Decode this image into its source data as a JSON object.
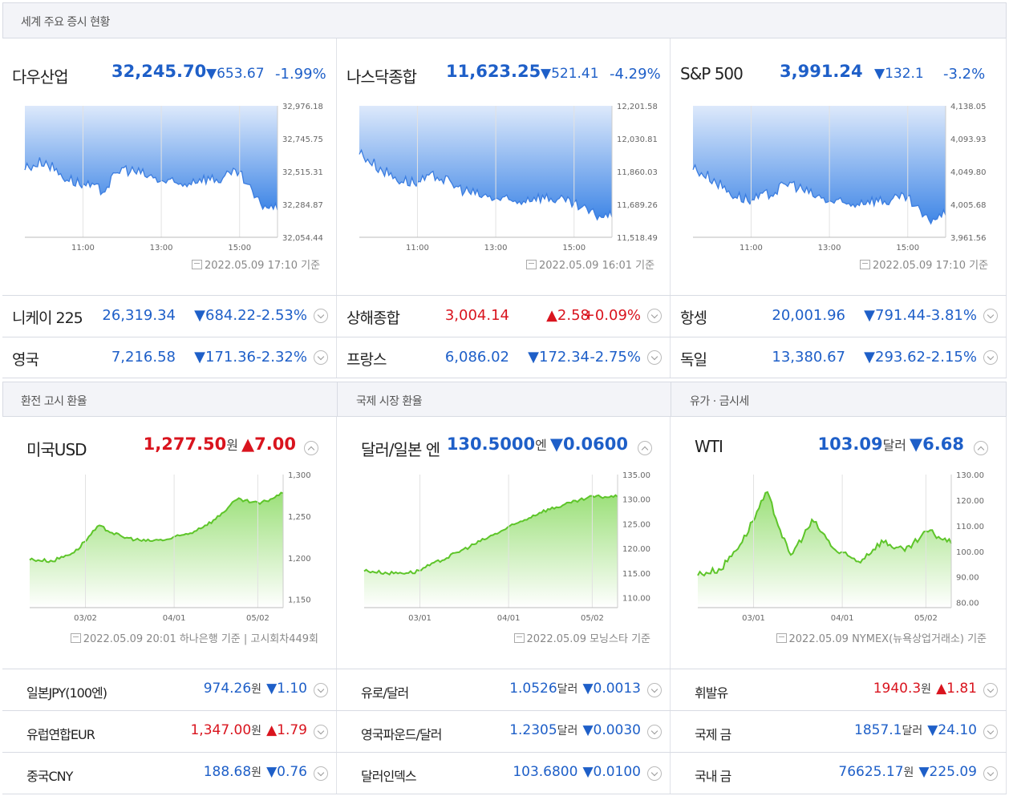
{
  "sections": {
    "world": "세계 주요 증시 현황",
    "exchange": "환전 고시 환율",
    "intl_fx": "국제 시장 환율",
    "oil_gold": "유가 · 금시세"
  },
  "indices": [
    {
      "name": "다우산업",
      "price": "32,245.70",
      "change": "▼653.67",
      "pct": "-1.99%",
      "y_ticks": [
        "32,976.18",
        "32,745.75",
        "32,515.31",
        "32,284.87",
        "32,054.44"
      ],
      "x_ticks": [
        "11:00",
        "13:00",
        "15:00"
      ],
      "stamp": "2022.05.09 17:10 기준"
    },
    {
      "name": "나스닥종합",
      "price": "11,623.25",
      "change": "▼521.41",
      "pct": "-4.29%",
      "y_ticks": [
        "12,201.58",
        "12,030.81",
        "11,860.03",
        "11,689.26",
        "11,518.49"
      ],
      "x_ticks": [
        "11:00",
        "13:00",
        "15:00"
      ],
      "stamp": "2022.05.09 16:01 기준"
    },
    {
      "name": "S&P 500",
      "price": "3,991.24",
      "change": "▼132.1",
      "pct": "-3.2%",
      "y_ticks": [
        "4,138.05",
        "4,093.93",
        "4,049.80",
        "4,005.68",
        "3,961.56"
      ],
      "x_ticks": [
        "11:00",
        "13:00",
        "15:00"
      ],
      "stamp": "2022.05.09 17:10 기준"
    }
  ],
  "index_rows": [
    [
      {
        "name": "니케이 225",
        "price": "26,319.34",
        "change": "▼684.22",
        "pct": "-2.53%",
        "dir": "down"
      },
      {
        "name": "상해종합",
        "price": "3,004.14",
        "change": "▲2.58",
        "pct": "+0.09%",
        "dir": "up"
      },
      {
        "name": "항셍",
        "price": "20,001.96",
        "change": "▼791.44",
        "pct": "-3.81%",
        "dir": "down"
      }
    ],
    [
      {
        "name": "영국",
        "price": "7,216.58",
        "change": "▼171.36",
        "pct": "-2.32%",
        "dir": "down"
      },
      {
        "name": "프랑스",
        "price": "6,086.02",
        "change": "▼172.34",
        "pct": "-2.75%",
        "dir": "down"
      },
      {
        "name": "독일",
        "price": "13,380.67",
        "change": "▼293.62",
        "pct": "-2.15%",
        "dir": "down"
      }
    ]
  ],
  "fx_main": [
    {
      "name": "미국USD",
      "price": "1,277.50",
      "unit": "원",
      "change": "▲7.00",
      "dir": "up",
      "y_ticks": [
        "1,300",
        "1,250",
        "1,200",
        "1,150"
      ],
      "x_ticks": [
        "03/02",
        "04/01",
        "05/02"
      ],
      "stamp": "2022.05.09 20:01 하나은행 기준 | 고시회차449회"
    },
    {
      "name": "달러/일본 엔",
      "price": "130.5000",
      "unit": "엔",
      "change": "▼0.0600",
      "dir": "down",
      "y_ticks": [
        "135.00",
        "130.00",
        "125.00",
        "120.00",
        "115.00",
        "110.00"
      ],
      "x_ticks": [
        "03/01",
        "04/01",
        "05/02"
      ],
      "stamp": "2022.05.09 모닝스타 기준"
    },
    {
      "name": "WTI",
      "price": "103.09",
      "unit": "달러",
      "change": "▼6.68",
      "dir": "down",
      "y_ticks": [
        "130.00",
        "120.00",
        "110.00",
        "100.00",
        "90.00",
        "80.00"
      ],
      "x_ticks": [
        "03/01",
        "04/01",
        "05/02"
      ],
      "stamp": "2022.05.09 NYMEX(뉴욕상업거래소) 기준"
    }
  ],
  "fx_rows": [
    [
      {
        "name": "일본JPY(100엔)",
        "price": "974.26",
        "unit": "원",
        "change": "▼1.10",
        "dir": "down"
      },
      {
        "name": "유로/달러",
        "price": "1.0526",
        "unit": "달러",
        "change": "▼0.0013",
        "dir": "down"
      },
      {
        "name": "휘발유",
        "price": "1940.3",
        "unit": "원",
        "change": "▲1.81",
        "dir": "up"
      }
    ],
    [
      {
        "name": "유럽연합EUR",
        "price": "1,347.00",
        "unit": "원",
        "change": "▲1.79",
        "dir": "up"
      },
      {
        "name": "영국파운드/달러",
        "price": "1.2305",
        "unit": "달러",
        "change": "▼0.0030",
        "dir": "down"
      },
      {
        "name": "국제 금",
        "price": "1857.1",
        "unit": "달러",
        "change": "▼24.10",
        "dir": "down"
      }
    ],
    [
      {
        "name": "중국CNY",
        "price": "188.68",
        "unit": "원",
        "change": "▼0.76",
        "dir": "down"
      },
      {
        "name": "달러인덱스",
        "price": "103.6800",
        "unit": "",
        "change": "▼0.0100",
        "dir": "down"
      },
      {
        "name": "국내 금",
        "price": "76625.17",
        "unit": "원",
        "change": "▼225.09",
        "dir": "down"
      }
    ]
  ],
  "colors": {
    "blue": "#1e5fc8",
    "red": "#d9141e",
    "stock_line": "#3b7de0",
    "fx_line": "#5ec52a"
  },
  "chart_data": [
    {
      "type": "area",
      "title": "다우산업",
      "x": [
        "09:30",
        "10:00",
        "10:30",
        "11:00",
        "11:30",
        "12:00",
        "12:30",
        "13:00",
        "13:30",
        "14:00",
        "14:30",
        "15:00",
        "15:30",
        "16:00"
      ],
      "values": [
        32540,
        32590,
        32480,
        32420,
        32380,
        32540,
        32500,
        32450,
        32420,
        32470,
        32460,
        32510,
        32300,
        32245.7
      ],
      "ylim": [
        32054.44,
        32976.18
      ]
    },
    {
      "type": "area",
      "title": "나스닥종합",
      "x": [
        "09:30",
        "10:00",
        "10:30",
        "11:00",
        "11:30",
        "12:00",
        "12:30",
        "13:00",
        "13:30",
        "14:00",
        "14:30",
        "15:00",
        "15:30",
        "16:00"
      ],
      "values": [
        11960,
        11880,
        11820,
        11800,
        11840,
        11780,
        11740,
        11720,
        11700,
        11730,
        11720,
        11690,
        11640,
        11623.25
      ],
      "ylim": [
        11518.49,
        12201.58
      ]
    },
    {
      "type": "area",
      "title": "S&P 500",
      "x": [
        "09:30",
        "10:00",
        "10:30",
        "11:00",
        "11:30",
        "12:00",
        "12:30",
        "13:00",
        "13:30",
        "14:00",
        "14:30",
        "15:00",
        "15:30",
        "16:00"
      ],
      "values": [
        4055,
        4040,
        4020,
        4010,
        4020,
        4035,
        4020,
        4010,
        4005,
        4012,
        4010,
        4015,
        3985,
        3991.24
      ],
      "ylim": [
        3961.56,
        4138.05
      ]
    },
    {
      "type": "area",
      "title": "미국USD",
      "x": [
        "02/10",
        "02/20",
        "03/02",
        "03/08",
        "03/15",
        "03/22",
        "04/01",
        "04/10",
        "04/20",
        "04/28",
        "05/02",
        "05/09"
      ],
      "values": [
        1198,
        1196,
        1208,
        1238,
        1225,
        1220,
        1222,
        1230,
        1245,
        1270,
        1265,
        1277.5
      ],
      "ylim": [
        1140,
        1300
      ]
    },
    {
      "type": "area",
      "title": "달러/일본 엔",
      "x": [
        "02/10",
        "02/20",
        "03/01",
        "03/10",
        "03/20",
        "04/01",
        "04/10",
        "04/20",
        "04/28",
        "05/02",
        "05/09"
      ],
      "values": [
        115.5,
        115.0,
        115.2,
        117.5,
        120.0,
        122.5,
        125.0,
        127.5,
        129.0,
        130.5,
        130.5
      ],
      "ylim": [
        108,
        135
      ]
    },
    {
      "type": "area",
      "title": "WTI",
      "x": [
        "02/10",
        "02/20",
        "03/01",
        "03/08",
        "03/15",
        "03/22",
        "04/01",
        "04/10",
        "04/20",
        "04/28",
        "05/02",
        "05/09"
      ],
      "values": [
        91,
        93,
        105,
        123,
        98,
        112,
        100,
        96,
        104,
        100,
        108,
        103.09
      ],
      "ylim": [
        78,
        130
      ]
    }
  ]
}
